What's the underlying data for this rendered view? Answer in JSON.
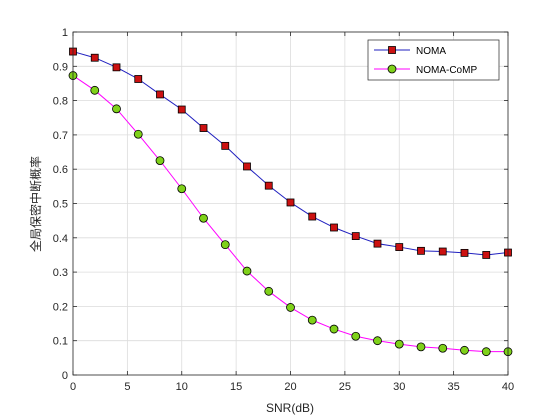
{
  "chart_data": {
    "type": "line",
    "title": "",
    "xlabel": "SNR(dB)",
    "ylabel": "全局保密中断概率",
    "xlim": [
      0,
      40
    ],
    "ylim": [
      0,
      1
    ],
    "xticks": [
      0,
      5,
      10,
      15,
      20,
      25,
      30,
      35,
      40
    ],
    "yticks": [
      0,
      0.1,
      0.2,
      0.3,
      0.4,
      0.5,
      0.6,
      0.7,
      0.8,
      0.9,
      1
    ],
    "xtick_labels": [
      "0",
      "5",
      "10",
      "15",
      "20",
      "25",
      "30",
      "35",
      "40"
    ],
    "ytick_labels": [
      "0",
      "0.1",
      "0.2",
      "0.3",
      "0.4",
      "0.5",
      "0.6",
      "0.7",
      "0.8",
      "0.9",
      "1"
    ],
    "grid": true,
    "legend_position": "top-right",
    "x": [
      0,
      2,
      4,
      6,
      8,
      10,
      12,
      14,
      16,
      18,
      20,
      22,
      24,
      26,
      28,
      30,
      32,
      34,
      36,
      38,
      40
    ],
    "series": [
      {
        "name": "NOMA",
        "line_color": "#1f1fbf",
        "marker": "square",
        "marker_color": "#cc1111",
        "values": [
          0.943,
          0.925,
          0.897,
          0.863,
          0.818,
          0.774,
          0.72,
          0.668,
          0.608,
          0.552,
          0.503,
          0.462,
          0.43,
          0.405,
          0.383,
          0.373,
          0.362,
          0.36,
          0.356,
          0.35,
          0.357
        ]
      },
      {
        "name": "NOMA-CoMP",
        "line_color": "#ff00ff",
        "marker": "circle",
        "marker_color": "#7fd11a",
        "values": [
          0.873,
          0.83,
          0.776,
          0.702,
          0.625,
          0.543,
          0.457,
          0.38,
          0.303,
          0.244,
          0.197,
          0.16,
          0.134,
          0.113,
          0.1,
          0.09,
          0.082,
          0.078,
          0.072,
          0.068,
          0.068
        ]
      }
    ]
  }
}
